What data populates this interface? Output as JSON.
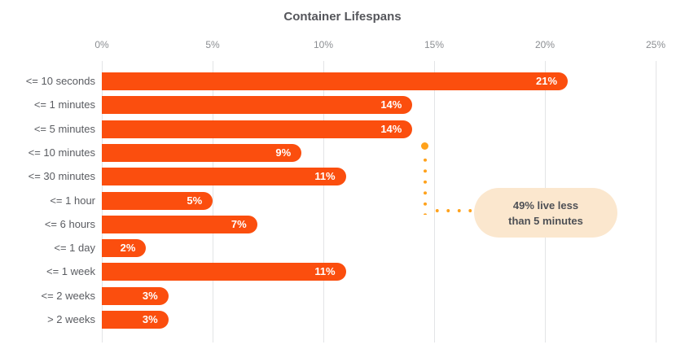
{
  "title": "Container Lifespans",
  "colors": {
    "bar": "#FB4E0E",
    "value_label_text": "#FFFFFF",
    "callout_dot": "#FFA21C",
    "annotation_bg": "#FBE7CE",
    "annotation_text": "#4E5055",
    "title_text": "#55565B",
    "axis_tick_text": "#8B8E92",
    "category_text": "#5A5C61",
    "gridline": "#E3E4E6",
    "background": "#FFFFFF"
  },
  "chart_data": {
    "type": "bar",
    "orientation": "horizontal",
    "title": "Container Lifespans",
    "categories": [
      "<= 10 seconds",
      "<= 1 minutes",
      "<= 5 minutes",
      "<= 10 minutes",
      "<= 30 minutes",
      "<= 1 hour",
      "<= 6 hours",
      "<= 1 day",
      "<= 1 week",
      "<= 2 weeks",
      "> 2 weeks"
    ],
    "values": [
      21,
      14,
      14,
      9,
      11,
      5,
      7,
      2,
      11,
      3,
      3
    ],
    "value_labels": [
      "21%",
      "14%",
      "14%",
      "9%",
      "11%",
      "5%",
      "7%",
      "2%",
      "11%",
      "3%",
      "3%"
    ],
    "xlabel": "",
    "ylabel": "",
    "xlim": [
      0,
      25
    ],
    "x_ticks": [
      "0%",
      "5%",
      "10%",
      "15%",
      "20%",
      "25%"
    ],
    "x_tick_values": [
      0,
      5,
      10,
      15,
      20,
      25
    ],
    "grid": true,
    "legend": false,
    "annotation": {
      "line1": "49% live less",
      "line2": "than 5 minutes",
      "anchor_value_percent": 14.5
    }
  }
}
